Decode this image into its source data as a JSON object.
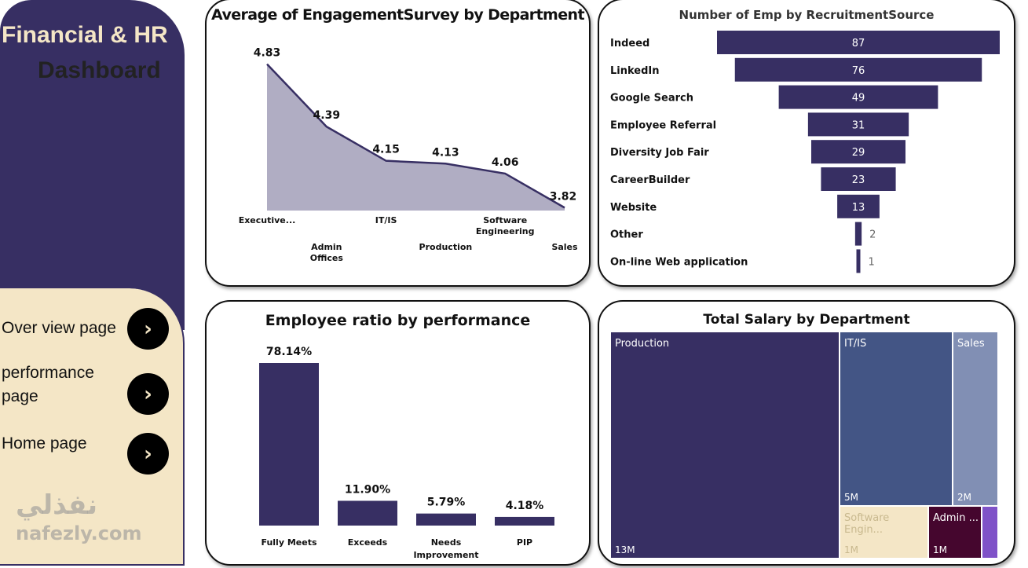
{
  "sidebar": {
    "title_line1": "Financial & HR",
    "title_line2": "Dashboard",
    "nav": [
      {
        "label": "Over view page",
        "icon": "chevron-right-icon"
      },
      {
        "label": "performance page",
        "icon": "chevron-right-icon"
      },
      {
        "label": "Home page",
        "icon": "chevron-right-icon"
      }
    ],
    "colors": {
      "panel": "#372f63",
      "nav_bg": "#f4e6c6"
    }
  },
  "watermark": {
    "arabic": "نفذلي",
    "latin": "nafezly.com"
  },
  "chart_data": [
    {
      "type": "area",
      "title": "Average of EngagementSurvey by Department",
      "categories": [
        "Executive...",
        "Admin Offices",
        "IT/IS",
        "Production",
        "Software Engineering",
        "Sales"
      ],
      "values": [
        4.83,
        4.39,
        4.15,
        4.13,
        4.06,
        3.82
      ],
      "data_labels": [
        "4.83",
        "4.39",
        "4.15",
        "4.13",
        "4.06",
        "3.82"
      ],
      "ylim": [
        3.8,
        4.85
      ],
      "grid": false,
      "color": "#372f63",
      "fill": "#b0adc3"
    },
    {
      "type": "bar",
      "orientation": "funnel",
      "title": "Number of Emp by RecruitmentSource",
      "categories": [
        "Indeed",
        "LinkedIn",
        "Google Search",
        "Employee Referral",
        "Diversity Job Fair",
        "CareerBuilder",
        "Website",
        "Other",
        "On-line Web application"
      ],
      "values": [
        87,
        76,
        49,
        31,
        29,
        23,
        13,
        2,
        1
      ],
      "color": "#372f63"
    },
    {
      "type": "bar",
      "title": "Employee ratio by performance",
      "categories": [
        "Fully Meets",
        "Exceeds",
        "Needs Improvement",
        "PIP"
      ],
      "values": [
        78.14,
        11.9,
        5.79,
        4.18
      ],
      "data_labels": [
        "78.14%",
        "11.90%",
        "5.79%",
        "4.18%"
      ],
      "color": "#372f63"
    },
    {
      "type": "treemap",
      "title": "Total Salary by Department",
      "categories": [
        "Production",
        "IT/IS",
        "Sales",
        "Software Engin...",
        "Admin ...",
        ""
      ],
      "value_labels": [
        "13M",
        "5M",
        "2M",
        "1M",
        "1M",
        ""
      ],
      "colors": [
        "#372f63",
        "#435585",
        "#818fb4",
        "#f4e6c6",
        "#45062e",
        "#7f52c8"
      ]
    }
  ]
}
